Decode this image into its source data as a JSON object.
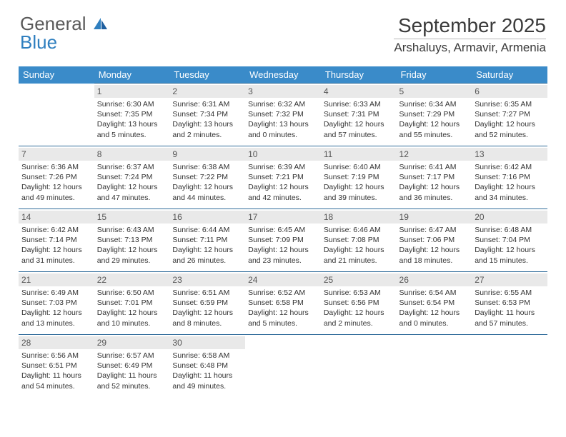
{
  "logo": {
    "text_top": "General",
    "text_bottom": "Blue",
    "accent_color": "#2f7fbf"
  },
  "header": {
    "title": "September 2025",
    "location": "Arshaluys, Armavir, Armenia"
  },
  "styling": {
    "header_bg": "#3a8bc9",
    "header_text": "#ffffff",
    "daynum_bg": "#e9e9e9",
    "daynum_text": "#555555",
    "rule_color": "#2f6b9a",
    "body_text": "#333333",
    "page_bg": "#ffffff",
    "font_family": "Arial",
    "title_fontsize": 28,
    "location_fontsize": 17,
    "weekday_fontsize": 13,
    "cell_fontsize": 10.5
  },
  "calendar": {
    "type": "table",
    "weekdays": [
      "Sunday",
      "Monday",
      "Tuesday",
      "Wednesday",
      "Thursday",
      "Friday",
      "Saturday"
    ],
    "start_weekday_index": 1,
    "days": [
      {
        "n": 1,
        "sunrise": "6:30 AM",
        "sunset": "7:35 PM",
        "daylight": "13 hours and 5 minutes."
      },
      {
        "n": 2,
        "sunrise": "6:31 AM",
        "sunset": "7:34 PM",
        "daylight": "13 hours and 2 minutes."
      },
      {
        "n": 3,
        "sunrise": "6:32 AM",
        "sunset": "7:32 PM",
        "daylight": "13 hours and 0 minutes."
      },
      {
        "n": 4,
        "sunrise": "6:33 AM",
        "sunset": "7:31 PM",
        "daylight": "12 hours and 57 minutes."
      },
      {
        "n": 5,
        "sunrise": "6:34 AM",
        "sunset": "7:29 PM",
        "daylight": "12 hours and 55 minutes."
      },
      {
        "n": 6,
        "sunrise": "6:35 AM",
        "sunset": "7:27 PM",
        "daylight": "12 hours and 52 minutes."
      },
      {
        "n": 7,
        "sunrise": "6:36 AM",
        "sunset": "7:26 PM",
        "daylight": "12 hours and 49 minutes."
      },
      {
        "n": 8,
        "sunrise": "6:37 AM",
        "sunset": "7:24 PM",
        "daylight": "12 hours and 47 minutes."
      },
      {
        "n": 9,
        "sunrise": "6:38 AM",
        "sunset": "7:22 PM",
        "daylight": "12 hours and 44 minutes."
      },
      {
        "n": 10,
        "sunrise": "6:39 AM",
        "sunset": "7:21 PM",
        "daylight": "12 hours and 42 minutes."
      },
      {
        "n": 11,
        "sunrise": "6:40 AM",
        "sunset": "7:19 PM",
        "daylight": "12 hours and 39 minutes."
      },
      {
        "n": 12,
        "sunrise": "6:41 AM",
        "sunset": "7:17 PM",
        "daylight": "12 hours and 36 minutes."
      },
      {
        "n": 13,
        "sunrise": "6:42 AM",
        "sunset": "7:16 PM",
        "daylight": "12 hours and 34 minutes."
      },
      {
        "n": 14,
        "sunrise": "6:42 AM",
        "sunset": "7:14 PM",
        "daylight": "12 hours and 31 minutes."
      },
      {
        "n": 15,
        "sunrise": "6:43 AM",
        "sunset": "7:13 PM",
        "daylight": "12 hours and 29 minutes."
      },
      {
        "n": 16,
        "sunrise": "6:44 AM",
        "sunset": "7:11 PM",
        "daylight": "12 hours and 26 minutes."
      },
      {
        "n": 17,
        "sunrise": "6:45 AM",
        "sunset": "7:09 PM",
        "daylight": "12 hours and 23 minutes."
      },
      {
        "n": 18,
        "sunrise": "6:46 AM",
        "sunset": "7:08 PM",
        "daylight": "12 hours and 21 minutes."
      },
      {
        "n": 19,
        "sunrise": "6:47 AM",
        "sunset": "7:06 PM",
        "daylight": "12 hours and 18 minutes."
      },
      {
        "n": 20,
        "sunrise": "6:48 AM",
        "sunset": "7:04 PM",
        "daylight": "12 hours and 15 minutes."
      },
      {
        "n": 21,
        "sunrise": "6:49 AM",
        "sunset": "7:03 PM",
        "daylight": "12 hours and 13 minutes."
      },
      {
        "n": 22,
        "sunrise": "6:50 AM",
        "sunset": "7:01 PM",
        "daylight": "12 hours and 10 minutes."
      },
      {
        "n": 23,
        "sunrise": "6:51 AM",
        "sunset": "6:59 PM",
        "daylight": "12 hours and 8 minutes."
      },
      {
        "n": 24,
        "sunrise": "6:52 AM",
        "sunset": "6:58 PM",
        "daylight": "12 hours and 5 minutes."
      },
      {
        "n": 25,
        "sunrise": "6:53 AM",
        "sunset": "6:56 PM",
        "daylight": "12 hours and 2 minutes."
      },
      {
        "n": 26,
        "sunrise": "6:54 AM",
        "sunset": "6:54 PM",
        "daylight": "12 hours and 0 minutes."
      },
      {
        "n": 27,
        "sunrise": "6:55 AM",
        "sunset": "6:53 PM",
        "daylight": "11 hours and 57 minutes."
      },
      {
        "n": 28,
        "sunrise": "6:56 AM",
        "sunset": "6:51 PM",
        "daylight": "11 hours and 54 minutes."
      },
      {
        "n": 29,
        "sunrise": "6:57 AM",
        "sunset": "6:49 PM",
        "daylight": "11 hours and 52 minutes."
      },
      {
        "n": 30,
        "sunrise": "6:58 AM",
        "sunset": "6:48 PM",
        "daylight": "11 hours and 49 minutes."
      }
    ],
    "labels": {
      "sunrise": "Sunrise:",
      "sunset": "Sunset:",
      "daylight": "Daylight:"
    }
  }
}
